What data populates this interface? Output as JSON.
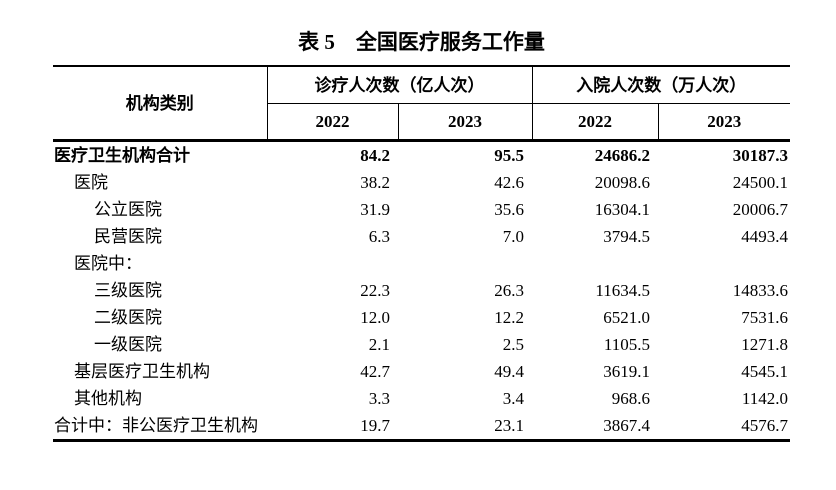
{
  "title": "表 5　全国医疗服务工作量",
  "table": {
    "header": {
      "category": "机构类别",
      "groups": [
        {
          "label": "诊疗人次数（亿人次）",
          "years": [
            "2022",
            "2023"
          ]
        },
        {
          "label": "入院人次数（万人次）",
          "years": [
            "2022",
            "2023"
          ]
        }
      ]
    },
    "rows": [
      {
        "label": "医疗卫生机构合计",
        "indent": 0,
        "bold": true,
        "values": [
          "84.2",
          "95.5",
          "24686.2",
          "30187.3"
        ]
      },
      {
        "label": "医院",
        "indent": 1,
        "bold": false,
        "values": [
          "38.2",
          "42.6",
          "20098.6",
          "24500.1"
        ]
      },
      {
        "label": "公立医院",
        "indent": 2,
        "bold": false,
        "values": [
          "31.9",
          "35.6",
          "16304.1",
          "20006.7"
        ]
      },
      {
        "label": "民营医院",
        "indent": 2,
        "bold": false,
        "values": [
          "6.3",
          "7.0",
          "3794.5",
          "4493.4"
        ]
      },
      {
        "label": "医院中：",
        "indent": 1,
        "bold": false,
        "values": [
          "",
          "",
          "",
          ""
        ]
      },
      {
        "label": "三级医院",
        "indent": 2,
        "bold": false,
        "values": [
          "22.3",
          "26.3",
          "11634.5",
          "14833.6"
        ]
      },
      {
        "label": "二级医院",
        "indent": 2,
        "bold": false,
        "values": [
          "12.0",
          "12.2",
          "6521.0",
          "7531.6"
        ]
      },
      {
        "label": "一级医院",
        "indent": 2,
        "bold": false,
        "values": [
          "2.1",
          "2.5",
          "1105.5",
          "1271.8"
        ]
      },
      {
        "label": "基层医疗卫生机构",
        "indent": 1,
        "bold": false,
        "values": [
          "42.7",
          "49.4",
          "3619.1",
          "4545.1"
        ]
      },
      {
        "label": "其他机构",
        "indent": 1,
        "bold": false,
        "values": [
          "3.3",
          "3.4",
          "968.6",
          "1142.0"
        ]
      },
      {
        "label": "合计中：非公医疗卫生机构",
        "indent": 0,
        "bold": false,
        "values": [
          "19.7",
          "23.1",
          "3867.4",
          "4576.7"
        ]
      }
    ]
  }
}
